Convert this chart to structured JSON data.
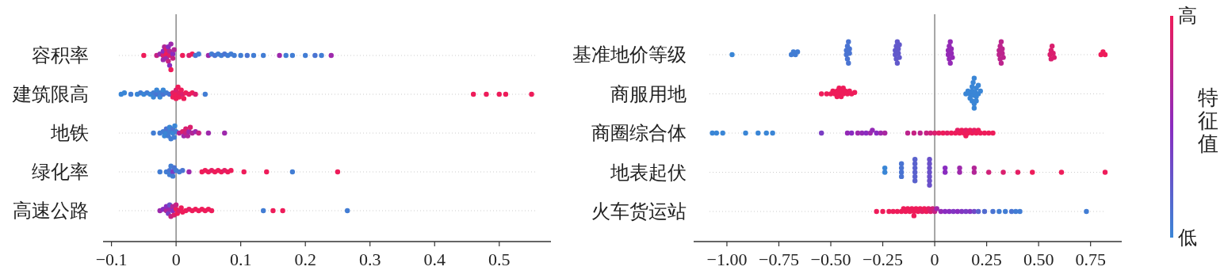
{
  "chart_data": [
    {
      "type": "scatter",
      "orientation": "horizontal",
      "categories": [
        "容积率",
        "建筑限高",
        "地铁",
        "绿化率",
        "高速公路"
      ],
      "xlim": [
        -0.113,
        0.58
      ],
      "xticks": [
        {
          "value": -0.1,
          "label": "−0.1"
        },
        0,
        0.1,
        0.2,
        0.3,
        0.4,
        0.5
      ],
      "grid": "y",
      "ref_lines": [
        {
          "axis": "x",
          "value": 0
        }
      ],
      "series": [
        {
          "x": [
            "容积率",
            "容积率",
            "容积率",
            "容积率",
            "容积率",
            "容积率",
            "容积率",
            "容积率",
            "容积率",
            "容积率",
            "容积率",
            "容积率",
            "容积率",
            "容积率",
            "容积率",
            "容积率",
            "容积率",
            "容积率",
            "容积率",
            "容积率",
            "容积率",
            "容积率",
            "容积率",
            "容积率",
            "容积率",
            "容积率",
            "容积率",
            "容积率",
            "容积率",
            "容积率",
            "容积率",
            "容积率",
            "容积率",
            "容积率",
            "容积率",
            "容积率",
            "容积率",
            "容积率",
            "容积率",
            "容积率",
            "容积率",
            "容积率",
            "容积率",
            "容积率",
            "容积率"
          ],
          "values": [
            -0.05,
            -0.03,
            -0.025,
            -0.02,
            -0.02,
            -0.018,
            -0.015,
            -0.015,
            -0.012,
            -0.012,
            -0.01,
            -0.01,
            -0.008,
            -0.008,
            -0.005,
            -0.005,
            -0.003,
            -0.015,
            -0.02,
            -0.01,
            0.01,
            0.02,
            0.025,
            0.03,
            0.035,
            0.05,
            0.055,
            0.06,
            0.065,
            0.07,
            0.075,
            0.08,
            0.085,
            0.09,
            0.1,
            0.11,
            0.12,
            0.135,
            0.16,
            0.17,
            0.18,
            0.2,
            0.215,
            0.225,
            0.24
          ],
          "colors": [
            "#ee1c5a",
            "#c62283",
            "#9e29ac",
            "#da1f6e",
            "#8a2cc0",
            "#b22597",
            "#ee1c5a",
            "#9e29ac",
            "#c62283",
            "#8a2cc0",
            "#da1f6e",
            "#b22597",
            "#9e29ac",
            "#ee1c5a",
            "#8a2cc0",
            "#c62283",
            "#b22597",
            "#da1f6e",
            "#9e29ac",
            "#8a2cc0",
            "#ee1c5a",
            "#da1f6e",
            "#ee1c5a",
            "#4a74d2",
            "#427dd4",
            "#9e29ac",
            "#427dd4",
            "#4a74d2",
            "#427dd4",
            "#427dd4",
            "#4a74d2",
            "#427dd4",
            "#427dd4",
            "#427dd4",
            "#427dd4",
            "#4a74d2",
            "#427dd4",
            "#427dd4",
            "#9e29ac",
            "#427dd4",
            "#427dd4",
            "#427dd4",
            "#4a74d2",
            "#427dd4",
            "#9e29ac"
          ]
        },
        {
          "x": [
            "建筑限高",
            "建筑限高",
            "建筑限高",
            "建筑限高",
            "建筑限高",
            "建筑限高",
            "建筑限高",
            "建筑限高",
            "建筑限高",
            "建筑限高",
            "建筑限高",
            "建筑限高",
            "建筑限高",
            "建筑限高",
            "建筑限高",
            "建筑限高",
            "建筑限高",
            "建筑限高",
            "建筑限高",
            "建筑限高",
            "建筑限高",
            "建筑限高",
            "建筑限高",
            "建筑限高",
            "建筑限高",
            "建筑限高",
            "建筑限高",
            "建筑限高",
            "建筑限高",
            "建筑限高",
            "建筑限高",
            "建筑限高",
            "建筑限高",
            "建筑限高",
            "建筑限高",
            "建筑限高",
            "建筑限高",
            "建筑限高",
            "建筑限高"
          ],
          "values": [
            -0.085,
            -0.08,
            -0.07,
            -0.06,
            -0.055,
            -0.05,
            -0.045,
            -0.04,
            -0.035,
            -0.035,
            -0.03,
            -0.03,
            -0.025,
            -0.025,
            -0.02,
            -0.02,
            -0.015,
            -0.01,
            -0.005,
            -0.005,
            0,
            0,
            0,
            0.003,
            0.005,
            0.005,
            0.008,
            0.01,
            0.012,
            0.015,
            0.02,
            0.025,
            0.03,
            0.045,
            0.46,
            0.48,
            0.5,
            0.51,
            0.55
          ],
          "colors": [
            "#3a86d6",
            "#3a86d6",
            "#427dd4",
            "#3a86d6",
            "#427dd4",
            "#3a86d6",
            "#427dd4",
            "#3a86d6",
            "#427dd4",
            "#3a86d6",
            "#4a74d2",
            "#3a86d6",
            "#427dd4",
            "#3a86d6",
            "#4a74d2",
            "#3a86d6",
            "#427dd4",
            "#4a74d2",
            "#e41e64",
            "#ee1c5a",
            "#ee1c5a",
            "#da1f6e",
            "#ee1c5a",
            "#ee1c5a",
            "#e41e64",
            "#ee1c5a",
            "#ee1c5a",
            "#da1f6e",
            "#ee1c5a",
            "#ee1c5a",
            "#e41e64",
            "#ee1c5a",
            "#da1f6e",
            "#427dd4",
            "#ee1c5a",
            "#ee1c5a",
            "#ee1c5a",
            "#ee1c5a",
            "#ee1c5a"
          ]
        },
        {
          "x": [
            "地铁",
            "地铁",
            "地铁",
            "地铁",
            "地铁",
            "地铁",
            "地铁",
            "地铁",
            "地铁",
            "地铁",
            "地铁",
            "地铁",
            "地铁",
            "地铁",
            "地铁",
            "地铁",
            "地铁",
            "地铁",
            "地铁",
            "地铁",
            "地铁",
            "地铁",
            "地铁",
            "地铁",
            "地铁",
            "地铁",
            "地铁",
            "地铁"
          ],
          "values": [
            -0.035,
            -0.025,
            -0.02,
            -0.015,
            -0.015,
            -0.01,
            -0.01,
            -0.008,
            -0.005,
            -0.005,
            -0.003,
            -0.002,
            0,
            -0.012,
            -0.018,
            0.005,
            0.01,
            0.012,
            0.015,
            0.015,
            0.018,
            0.02,
            0.022,
            0.025,
            0.03,
            0.035,
            0.05,
            0.075
          ],
          "colors": [
            "#427dd4",
            "#427dd4",
            "#427dd4",
            "#3a86d6",
            "#4a74d2",
            "#427dd4",
            "#3a86d6",
            "#427dd4",
            "#3a86d6",
            "#4a74d2",
            "#427dd4",
            "#3a86d6",
            "#427dd4",
            "#427dd4",
            "#3a86d6",
            "#b22597",
            "#da1f6e",
            "#9e29ac",
            "#c62283",
            "#da1f6e",
            "#b22597",
            "#9e29ac",
            "#da1f6e",
            "#b22597",
            "#9e29ac",
            "#c62283",
            "#9e29ac",
            "#9e29ac"
          ]
        },
        {
          "x": [
            "绿化率",
            "绿化率",
            "绿化率",
            "绿化率",
            "绿化率",
            "绿化率",
            "绿化率",
            "绿化率",
            "绿化率",
            "绿化率",
            "绿化率",
            "绿化率",
            "绿化率",
            "绿化率",
            "绿化率",
            "绿化率",
            "绿化率",
            "绿化率",
            "绿化率",
            "绿化率",
            "绿化率",
            "绿化率",
            "绿化率",
            "绿化率",
            "绿化率",
            "绿化率"
          ],
          "values": [
            -0.025,
            -0.015,
            -0.01,
            -0.008,
            -0.005,
            -0.005,
            -0.003,
            0,
            -0.01,
            0.005,
            0.01,
            0.02,
            0.04,
            0.045,
            0.05,
            0.055,
            0.06,
            0.065,
            0.07,
            0.075,
            0.08,
            0.085,
            0.105,
            0.14,
            0.18,
            0.25
          ],
          "colors": [
            "#427dd4",
            "#427dd4",
            "#4a74d2",
            "#427dd4",
            "#7a3ec4",
            "#427dd4",
            "#4a74d2",
            "#427dd4",
            "#427dd4",
            "#427dd4",
            "#4a74d2",
            "#9e29ac",
            "#ee1c5a",
            "#ee1c5a",
            "#ee1c5a",
            "#e41e64",
            "#ee1c5a",
            "#ee1c5a",
            "#ee1c5a",
            "#e41e64",
            "#ee1c5a",
            "#ee1c5a",
            "#ee1c5a",
            "#ee1c5a",
            "#427dd4",
            "#ee1c5a"
          ]
        },
        {
          "x": [
            "高速公路",
            "高速公路",
            "高速公路",
            "高速公路",
            "高速公路",
            "高速公路",
            "高速公路",
            "高速公路",
            "高速公路",
            "高速公路",
            "高速公路",
            "高速公路",
            "高速公路",
            "高速公路",
            "高速公路",
            "高速公路",
            "高速公路",
            "高速公路",
            "高速公路",
            "高速公路",
            "高速公路",
            "高速公路",
            "高速公路",
            "高速公路",
            "高速公路",
            "高速公路",
            "高速公路",
            "高速公路",
            "高速公路",
            "高速公路"
          ],
          "values": [
            -0.025,
            -0.02,
            -0.015,
            -0.012,
            -0.01,
            -0.008,
            -0.005,
            -0.005,
            -0.003,
            0,
            0,
            0.002,
            0.005,
            0.008,
            0.01,
            0.015,
            0.02,
            0.025,
            0.03,
            0.035,
            0.04,
            0.045,
            0.05,
            0.055,
            -0.015,
            -0.01,
            0.135,
            0.15,
            0.165,
            0.265
          ],
          "colors": [
            "#9e29ac",
            "#8a2cc0",
            "#b22597",
            "#7a3ec4",
            "#9e29ac",
            "#c62283",
            "#8a2cc0",
            "#b22597",
            "#da1f6e",
            "#ee1c5a",
            "#c62283",
            "#ee1c5a",
            "#da1f6e",
            "#ee1c5a",
            "#ee1c5a",
            "#ee1c5a",
            "#e41e64",
            "#ee1c5a",
            "#ee1c5a",
            "#ee1c5a",
            "#ee1c5a",
            "#ee1c5a",
            "#ee1c5a",
            "#ee1c5a",
            "#8a2cc0",
            "#6a50c9",
            "#427dd4",
            "#ee1c5a",
            "#ee1c5a",
            "#427dd4"
          ]
        }
      ]
    },
    {
      "type": "scatter",
      "orientation": "horizontal",
      "categories": [
        "基准地价等级",
        "商服用地",
        "商圈综合体",
        "地表起伏",
        "火车货运站"
      ],
      "xlim": [
        -1.16,
        0.9
      ],
      "xticks": [
        {
          "value": -1,
          "label": "−1.00"
        },
        {
          "value": -0.75,
          "label": "−0.75"
        },
        {
          "value": -0.5,
          "label": "−0.50"
        },
        {
          "value": -0.25,
          "label": "−0.25"
        },
        0,
        {
          "value": 0.25,
          "label": "0.25"
        },
        {
          "value": 0.5,
          "label": "0.50"
        },
        {
          "value": 0.75,
          "label": "0.75"
        }
      ],
      "grid": "y",
      "ref_lines": [
        {
          "axis": "x",
          "value": 0
        }
      ],
      "clim": [
        0,
        1
      ],
      "cticks": [
        {
          "value": 0,
          "label": "低"
        },
        {
          "value": 1,
          "label": "高"
        }
      ],
      "clabel": "特征值",
      "series": [
        {
          "x": [
            "基准地价等级",
            "基准地价等级",
            "基准地价等级",
            "基准地价等级",
            "基准地价等级",
            "基准地价等级",
            "基准地价等级",
            "基准地价等级",
            "基准地价等级",
            "基准地价等级",
            "基准地价等级",
            "基准地价等级",
            "基准地价等级",
            "基准地价等级",
            "基准地价等级",
            "基准地价等级",
            "基准地价等级",
            "基准地价等级",
            "基准地价等级",
            "基准地价等级",
            "基准地价等级",
            "基准地价等级",
            "基准地价等级",
            "基准地价等级",
            "基准地价等级",
            "基准地价等级",
            "基准地价等级",
            "基准地价等级",
            "基准地价等级",
            "基准地价等级",
            "基准地价等级",
            "基准地价等级",
            "基准地价等级",
            "基准地价等级",
            "基准地价等级",
            "基准地价等级",
            "基准地价等级",
            "基准地价等级",
            "基准地价等级",
            "基准地价等级",
            "基准地价等级",
            "基准地价等级",
            "基准地价等级",
            "基准地价等级",
            "基准地价等级",
            "基准地价等级",
            "基准地价等级",
            "基准地价等级",
            "基准地价等级",
            "基准地价等级"
          ],
          "values": [
            -0.975,
            -0.69,
            -0.68,
            -0.67,
            -0.66,
            -0.425,
            -0.42,
            -0.415,
            -0.41,
            -0.425,
            -0.42,
            -0.415,
            -0.41,
            -0.19,
            -0.185,
            -0.18,
            -0.175,
            -0.17,
            -0.19,
            -0.185,
            -0.18,
            -0.175,
            -0.17,
            0.065,
            0.07,
            0.075,
            0.08,
            0.085,
            0.065,
            0.07,
            0.075,
            0.08,
            0.31,
            0.315,
            0.32,
            0.325,
            0.33,
            0.31,
            0.315,
            0.32,
            0.325,
            0.555,
            0.56,
            0.565,
            0.57,
            0.575,
            0.56,
            0.8,
            0.81,
            0.82
          ],
          "colors": [
            "#3a86d6",
            "#427dd4",
            "#427dd4",
            "#427dd4",
            "#427dd4",
            "#4a74d2",
            "#4a74d2",
            "#4a74d2",
            "#4a74d2",
            "#4a74d2",
            "#4a74d2",
            "#4a74d2",
            "#4a74d2",
            "#6259cb",
            "#6259cb",
            "#6259cb",
            "#6259cb",
            "#6259cb",
            "#6259cb",
            "#6259cb",
            "#6259cb",
            "#6259cb",
            "#6259cb",
            "#942ab6",
            "#942ab6",
            "#942ab6",
            "#942ab6",
            "#942ab6",
            "#942ab6",
            "#942ab6",
            "#942ab6",
            "#942ab6",
            "#bc248d",
            "#bc248d",
            "#bc248d",
            "#bc248d",
            "#bc248d",
            "#bc248d",
            "#bc248d",
            "#bc248d",
            "#bc248d",
            "#da1f6e",
            "#da1f6e",
            "#da1f6e",
            "#da1f6e",
            "#da1f6e",
            "#da1f6e",
            "#ee1c5a",
            "#ee1c5a",
            "#ee1c5a"
          ]
        },
        {
          "x": [
            "商服用地",
            "商服用地",
            "商服用地",
            "商服用地",
            "商服用地",
            "商服用地",
            "商服用地",
            "商服用地",
            "商服用地",
            "商服用地",
            "商服用地",
            "商服用地",
            "商服用地",
            "商服用地",
            "商服用地",
            "商服用地",
            "商服用地",
            "商服用地",
            "商服用地",
            "商服用地",
            "商服用地",
            "商服用地",
            "商服用地",
            "商服用地",
            "商服用地",
            "商服用地",
            "商服用地",
            "商服用地",
            "商服用地",
            "商服用地",
            "商服用地",
            "商服用地",
            "商服用地",
            "商服用地",
            "商服用地",
            "商服用地",
            "商服用地"
          ],
          "values": [
            -0.545,
            -0.52,
            -0.5,
            -0.49,
            -0.48,
            -0.47,
            -0.47,
            -0.46,
            -0.46,
            -0.45,
            -0.45,
            -0.44,
            -0.44,
            -0.43,
            -0.42,
            -0.41,
            -0.4,
            -0.385,
            0.15,
            0.16,
            0.17,
            0.17,
            0.18,
            0.18,
            0.18,
            0.185,
            0.185,
            0.19,
            0.19,
            0.19,
            0.195,
            0.2,
            0.2,
            0.2,
            0.21,
            0.21,
            0.22
          ],
          "colors": [
            "#ee1c5a",
            "#ee1c5a",
            "#ee1c5a",
            "#ee1c5a",
            "#ee1c5a",
            "#ee1c5a",
            "#ee1c5a",
            "#ee1c5a",
            "#ee1c5a",
            "#ee1c5a",
            "#ee1c5a",
            "#ee1c5a",
            "#ee1c5a",
            "#ee1c5a",
            "#ee1c5a",
            "#ee1c5a",
            "#ee1c5a",
            "#ee1c5a",
            "#3a86d6",
            "#3a86d6",
            "#3a86d6",
            "#3a86d6",
            "#3a86d6",
            "#3a86d6",
            "#3a86d6",
            "#3a86d6",
            "#3a86d6",
            "#3a86d6",
            "#3a86d6",
            "#3a86d6",
            "#3a86d6",
            "#3a86d6",
            "#3a86d6",
            "#3a86d6",
            "#3a86d6",
            "#3a86d6",
            "#3a86d6"
          ]
        },
        {
          "x": [
            "商圈综合体",
            "商圈综合体",
            "商圈综合体",
            "商圈综合体",
            "商圈综合体",
            "商圈综合体",
            "商圈综合体",
            "商圈综合体",
            "商圈综合体",
            "商圈综合体",
            "商圈综合体",
            "商圈综合体",
            "商圈综合体",
            "商圈综合体",
            "商圈综合体",
            "商圈综合体",
            "商圈综合体",
            "商圈综合体",
            "商圈综合体",
            "商圈综合体",
            "商圈综合体",
            "商圈综合体",
            "商圈综合体",
            "商圈综合体",
            "商圈综合体",
            "商圈综合体",
            "商圈综合体",
            "商圈综合体",
            "商圈综合体",
            "商圈综合体",
            "商圈综合体",
            "商圈综合体",
            "商圈综合体",
            "商圈综合体",
            "商圈综合体",
            "商圈综合体",
            "商圈综合体",
            "商圈综合体",
            "商圈综合体",
            "商圈综合体",
            "商圈综合体",
            "商圈综合体",
            "商圈综合体",
            "商圈综合体",
            "商圈综合体"
          ],
          "values": [
            -1.07,
            -1.05,
            -1.02,
            -0.91,
            -0.85,
            -0.81,
            -0.78,
            -0.545,
            -0.42,
            -0.4,
            -0.37,
            -0.35,
            -0.33,
            -0.31,
            -0.3,
            -0.28,
            -0.26,
            -0.24,
            -0.13,
            -0.1,
            -0.07,
            -0.04,
            -0.02,
            0,
            0.02,
            0.04,
            0.06,
            0.08,
            0.1,
            0.11,
            0.12,
            0.13,
            0.14,
            0.15,
            0.15,
            0.16,
            0.17,
            0.18,
            0.19,
            0.2,
            0.21,
            0.22,
            0.24,
            0.26,
            0.28
          ],
          "colors": [
            "#3a86d6",
            "#3a86d6",
            "#3a86d6",
            "#3a86d6",
            "#3a86d6",
            "#3a86d6",
            "#3a86d6",
            "#7a3ec4",
            "#942ab6",
            "#8a2cc0",
            "#9e29ac",
            "#942ab6",
            "#8a2cc0",
            "#9e29ac",
            "#942ab6",
            "#8a2cc0",
            "#9e29ac",
            "#a827a1",
            "#bc248d",
            "#c62283",
            "#bc248d",
            "#c62283",
            "#d02179",
            "#da1f6e",
            "#e41e64",
            "#ee1c5a",
            "#e41e64",
            "#ee1c5a",
            "#ee1c5a",
            "#e41e64",
            "#ee1c5a",
            "#ee1c5a",
            "#ee1c5a",
            "#e41e64",
            "#ee1c5a",
            "#ee1c5a",
            "#ee1c5a",
            "#ee1c5a",
            "#e41e64",
            "#ee1c5a",
            "#ee1c5a",
            "#ee1c5a",
            "#ee1c5a",
            "#ee1c5a",
            "#ee1c5a"
          ]
        },
        {
          "x": [
            "地表起伏",
            "地表起伏",
            "地表起伏",
            "地表起伏",
            "地表起伏",
            "地表起伏",
            "地表起伏",
            "地表起伏",
            "地表起伏",
            "地表起伏",
            "地表起伏",
            "地表起伏",
            "地表起伏",
            "地表起伏",
            "地表起伏",
            "地表起伏",
            "地表起伏",
            "地表起伏",
            "地表起伏",
            "地表起伏",
            "地表起伏",
            "地表起伏",
            "地表起伏",
            "地表起伏",
            "地表起伏",
            "地表起伏",
            "地表起伏",
            "地表起伏",
            "地表起伏",
            "地表起伏",
            "地表起伏"
          ],
          "values": [
            -0.24,
            -0.24,
            -0.16,
            -0.16,
            -0.16,
            -0.16,
            -0.095,
            -0.095,
            -0.095,
            -0.095,
            -0.095,
            -0.095,
            -0.025,
            -0.025,
            -0.025,
            -0.025,
            -0.025,
            -0.025,
            -0.025,
            0.05,
            0.05,
            0.12,
            0.12,
            0.19,
            0.19,
            0.26,
            0.33,
            0.4,
            0.47,
            0.61,
            0.82
          ],
          "colors": [
            "#3a86d6",
            "#3a86d6",
            "#4a74d2",
            "#4a74d2",
            "#4a74d2",
            "#4a74d2",
            "#5a62cd",
            "#5a62cd",
            "#5a62cd",
            "#5a62cd",
            "#5a62cd",
            "#5a62cd",
            "#6a50c9",
            "#6a50c9",
            "#6a50c9",
            "#6a50c9",
            "#6a50c9",
            "#6a50c9",
            "#6a50c9",
            "#8a2cc0",
            "#8a2cc0",
            "#9e29ac",
            "#9e29ac",
            "#b22597",
            "#b22597",
            "#d02179",
            "#da1f6e",
            "#e41e64",
            "#ee1c5a",
            "#ee1c5a",
            "#ee1c5a"
          ]
        },
        {
          "x": [
            "火车货运站",
            "火车货运站",
            "火车货运站",
            "火车货运站",
            "火车货运站",
            "火车货运站",
            "火车货运站",
            "火车货运站",
            "火车货运站",
            "火车货运站",
            "火车货运站",
            "火车货运站",
            "火车货运站",
            "火车货运站",
            "火车货运站",
            "火车货运站",
            "火车货运站",
            "火车货运站",
            "火车货运站",
            "火车货运站",
            "火车货运站",
            "火车货运站",
            "火车货运站",
            "火车货运站",
            "火车货运站",
            "火车货运站",
            "火车货运站",
            "火车货运站",
            "火车货运站",
            "火车货运站",
            "火车货运站",
            "火车货运站",
            "火车货运站",
            "火车货运站",
            "火车货运站",
            "火车货运站",
            "火车货运站",
            "火车货运站",
            "火车货运站",
            "火车货运站",
            "火车货运站",
            "火车货运站"
          ],
          "values": [
            -0.28,
            -0.25,
            -0.22,
            -0.2,
            -0.18,
            -0.16,
            -0.15,
            -0.14,
            -0.13,
            -0.12,
            -0.11,
            -0.1,
            -0.1,
            -0.09,
            -0.08,
            -0.07,
            -0.06,
            -0.05,
            -0.04,
            -0.03,
            -0.02,
            -0.01,
            0,
            0.01,
            0.03,
            0.05,
            0.07,
            0.09,
            0.11,
            0.13,
            0.15,
            0.17,
            0.19,
            0.21,
            0.24,
            0.28,
            0.31,
            0.34,
            0.37,
            0.39,
            0.41,
            0.73
          ],
          "colors": [
            "#ee1c5a",
            "#ee1c5a",
            "#ee1c5a",
            "#ee1c5a",
            "#ee1c5a",
            "#ee1c5a",
            "#ee1c5a",
            "#ee1c5a",
            "#ee1c5a",
            "#ee1c5a",
            "#ee1c5a",
            "#ee1c5a",
            "#ee1c5a",
            "#ee1c5a",
            "#ee1c5a",
            "#ee1c5a",
            "#e41e64",
            "#ee1c5a",
            "#ee1c5a",
            "#e41e64",
            "#da1f6e",
            "#d02179",
            "#c62283",
            "#9e29ac",
            "#942ab6",
            "#8a2cc0",
            "#8a2cc0",
            "#8235c2",
            "#8a2cc0",
            "#8235c2",
            "#7a3ec4",
            "#8235c2",
            "#7247c7",
            "#5a62cd",
            "#526bcf",
            "#4a74d2",
            "#427dd4",
            "#427dd4",
            "#4a74d2",
            "#427dd4",
            "#427dd4",
            "#427dd4"
          ]
        }
      ]
    }
  ]
}
